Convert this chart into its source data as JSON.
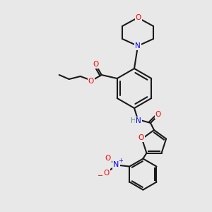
{
  "bg_color": "#e8e8e8",
  "bond_color": "#1a1a1a",
  "atom_colors": {
    "O": "#ff0000",
    "N": "#0000ff",
    "N_amide": "#4a9090",
    "N_plus": "#0000ff",
    "O_minus": "#ff0000"
  },
  "figsize": [
    3.0,
    3.0
  ],
  "dpi": 100
}
